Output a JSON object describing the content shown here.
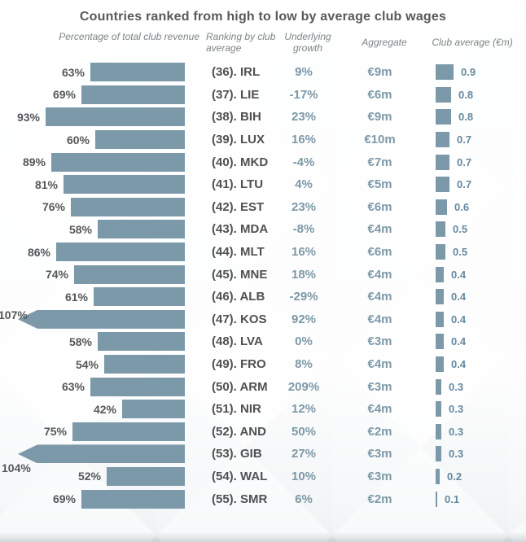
{
  "title": "Countries ranked from high to low by average club wages",
  "columns": {
    "revenue_pct": "Percentage of total club revenue",
    "ranking": "Ranking by club average",
    "growth": "Underlying growth",
    "aggregate": "Aggregate",
    "club_average": "Club average (€m)"
  },
  "colors": {
    "bar": "#7c99a9",
    "blue_text": "#7d99a7",
    "club_value_text": "#6589a0",
    "dark_text": "#4e5052",
    "pct_text": "#55575a",
    "header_text": "#7f8487",
    "title_text": "#57595b"
  },
  "rows": [
    {
      "label": "(36). IRL",
      "pct": 63,
      "pct_label": "63%",
      "growth": "9%",
      "aggregate": "€9m",
      "club_avg": 0.9,
      "club_avg_label": "0.9",
      "overflow": ""
    },
    {
      "label": "(37). LIE",
      "pct": 69,
      "pct_label": "69%",
      "growth": "-17%",
      "aggregate": "€6m",
      "club_avg": 0.8,
      "club_avg_label": "0.8",
      "overflow": ""
    },
    {
      "label": "(38). BIH",
      "pct": 93,
      "pct_label": "93%",
      "growth": "23%",
      "aggregate": "€9m",
      "club_avg": 0.8,
      "club_avg_label": "0.8",
      "overflow": ""
    },
    {
      "label": "(39). LUX",
      "pct": 60,
      "pct_label": "60%",
      "growth": "16%",
      "aggregate": "€10m",
      "club_avg": 0.7,
      "club_avg_label": "0.7",
      "overflow": ""
    },
    {
      "label": "(40). MKD",
      "pct": 89,
      "pct_label": "89%",
      "growth": "-4%",
      "aggregate": "€7m",
      "club_avg": 0.7,
      "club_avg_label": "0.7",
      "overflow": ""
    },
    {
      "label": "(41). LTU",
      "pct": 81,
      "pct_label": "81%",
      "growth": "4%",
      "aggregate": "€5m",
      "club_avg": 0.7,
      "club_avg_label": "0.7",
      "overflow": ""
    },
    {
      "label": "(42). EST",
      "pct": 76,
      "pct_label": "76%",
      "growth": "23%",
      "aggregate": "€6m",
      "club_avg": 0.6,
      "club_avg_label": "0.6",
      "overflow": ""
    },
    {
      "label": "(43). MDA",
      "pct": 58,
      "pct_label": "58%",
      "growth": "-8%",
      "aggregate": "€4m",
      "club_avg": 0.5,
      "club_avg_label": "0.5",
      "overflow": ""
    },
    {
      "label": "(44). MLT",
      "pct": 86,
      "pct_label": "86%",
      "growth": "16%",
      "aggregate": "€6m",
      "club_avg": 0.5,
      "club_avg_label": "0.5",
      "overflow": ""
    },
    {
      "label": "(45). MNE",
      "pct": 74,
      "pct_label": "74%",
      "growth": "18%",
      "aggregate": "€4m",
      "club_avg": 0.4,
      "club_avg_label": "0.4",
      "overflow": ""
    },
    {
      "label": "(46). ALB",
      "pct": 61,
      "pct_label": "61%",
      "growth": "-29%",
      "aggregate": "€4m",
      "club_avg": 0.4,
      "club_avg_label": "0.4",
      "overflow": ""
    },
    {
      "label": "(47). KOS",
      "pct": 107,
      "pct_label": "107%",
      "growth": "92%",
      "aggregate": "€4m",
      "club_avg": 0.4,
      "club_avg_label": "0.4",
      "overflow": "mid"
    },
    {
      "label": "(48). LVA",
      "pct": 58,
      "pct_label": "58%",
      "growth": "0%",
      "aggregate": "€3m",
      "club_avg": 0.4,
      "club_avg_label": "0.4",
      "overflow": ""
    },
    {
      "label": "(49). FRO",
      "pct": 54,
      "pct_label": "54%",
      "growth": "8%",
      "aggregate": "€4m",
      "club_avg": 0.4,
      "club_avg_label": "0.4",
      "overflow": ""
    },
    {
      "label": "(50). ARM",
      "pct": 63,
      "pct_label": "63%",
      "growth": "209%",
      "aggregate": "€3m",
      "club_avg": 0.3,
      "club_avg_label": "0.3",
      "overflow": ""
    },
    {
      "label": "(51). NIR",
      "pct": 42,
      "pct_label": "42%",
      "growth": "12%",
      "aggregate": "€4m",
      "club_avg": 0.3,
      "club_avg_label": "0.3",
      "overflow": ""
    },
    {
      "label": "(52). AND",
      "pct": 75,
      "pct_label": "75%",
      "growth": "50%",
      "aggregate": "€2m",
      "club_avg": 0.3,
      "club_avg_label": "0.3",
      "overflow": ""
    },
    {
      "label": "(53). GIB",
      "pct": 104,
      "pct_label": "104%",
      "growth": "27%",
      "aggregate": "€3m",
      "club_avg": 0.3,
      "club_avg_label": "0.3",
      "overflow": "below"
    },
    {
      "label": "(54). WAL",
      "pct": 52,
      "pct_label": "52%",
      "growth": "10%",
      "aggregate": "€3m",
      "club_avg": 0.2,
      "club_avg_label": "0.2",
      "overflow": ""
    },
    {
      "label": "(55). SMR",
      "pct": 69,
      "pct_label": "69%",
      "growth": "6%",
      "aggregate": "€2m",
      "club_avg": 0.1,
      "club_avg_label": "0.1",
      "overflow": ""
    }
  ],
  "chart_data": {
    "type": "bar",
    "orientation": "horizontal",
    "title": "Countries ranked from high to low by average club wages",
    "categories": [
      "(36). IRL",
      "(37). LIE",
      "(38). BIH",
      "(39). LUX",
      "(40). MKD",
      "(41). LTU",
      "(42). EST",
      "(43). MDA",
      "(44). MLT",
      "(45). MNE",
      "(46). ALB",
      "(47). KOS",
      "(48). LVA",
      "(49). FRO",
      "(50). ARM",
      "(51). NIR",
      "(52). AND",
      "(53). GIB",
      "(54). WAL",
      "(55). SMR"
    ],
    "series": [
      {
        "name": "Percentage of total club revenue",
        "unit": "%",
        "values": [
          63,
          69,
          93,
          60,
          89,
          81,
          76,
          58,
          86,
          74,
          61,
          107,
          58,
          54,
          63,
          42,
          75,
          104,
          52,
          69
        ]
      },
      {
        "name": "Underlying growth",
        "unit": "%",
        "values": [
          9,
          -17,
          23,
          16,
          -4,
          4,
          23,
          -8,
          16,
          18,
          -29,
          92,
          0,
          8,
          209,
          12,
          50,
          27,
          10,
          6
        ]
      },
      {
        "name": "Aggregate",
        "unit": "€m",
        "values": [
          9,
          6,
          9,
          10,
          7,
          5,
          6,
          4,
          6,
          4,
          4,
          4,
          3,
          4,
          3,
          4,
          2,
          3,
          3,
          2
        ]
      },
      {
        "name": "Club average (€m)",
        "unit": "€m",
        "values": [
          0.9,
          0.8,
          0.8,
          0.7,
          0.7,
          0.7,
          0.6,
          0.5,
          0.5,
          0.4,
          0.4,
          0.4,
          0.4,
          0.4,
          0.3,
          0.3,
          0.3,
          0.3,
          0.2,
          0.1
        ]
      }
    ],
    "layout_hints": {
      "revenue_bars_right_aligned": true,
      "overflow_arrow_rows": [
        "(47). KOS",
        "(53). GIB"
      ],
      "grid": false,
      "legend": "none"
    }
  }
}
